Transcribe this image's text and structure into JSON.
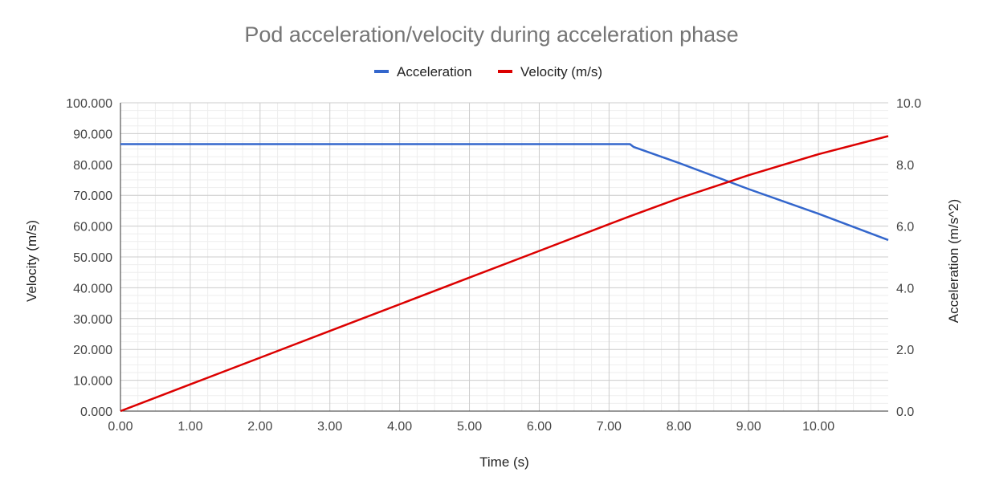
{
  "chart_data": {
    "type": "line",
    "title": "Pod acceleration/velocity during acceleration phase",
    "xlabel": "Time (s)",
    "ylabel_left": "Velocity (m/s)",
    "ylabel_right": "Acceleration (m/s^2)",
    "xlim": [
      0,
      11
    ],
    "ylim_left": [
      0,
      100
    ],
    "ylim_right": [
      0,
      10
    ],
    "x_ticks": [
      "0.00",
      "1.00",
      "2.00",
      "3.00",
      "4.00",
      "5.00",
      "6.00",
      "7.00",
      "8.00",
      "9.00",
      "10.00"
    ],
    "y_ticks_left": [
      "0.000",
      "10.000",
      "20.000",
      "30.000",
      "40.000",
      "50.000",
      "60.000",
      "70.000",
      "80.000",
      "90.000",
      "100.000"
    ],
    "y_ticks_right": [
      "0.0",
      "2.0",
      "4.0",
      "6.0",
      "8.0",
      "10.0"
    ],
    "grid": true,
    "legend_position": "top",
    "series": [
      {
        "name": "Acceleration",
        "axis": "right",
        "color": "#3366cc",
        "x": [
          0,
          7.3,
          7.35,
          8.0,
          9.0,
          10.0,
          11.0
        ],
        "y": [
          8.66,
          8.66,
          8.57,
          8.05,
          7.2,
          6.4,
          5.55
        ]
      },
      {
        "name": "Velocity (m/s)",
        "axis": "left",
        "color": "#dc0000",
        "x": [
          0,
          1,
          2,
          3,
          4,
          5,
          6,
          7,
          7.3,
          8,
          9,
          10,
          11
        ],
        "y": [
          0,
          8.66,
          17.32,
          25.98,
          34.64,
          43.3,
          51.96,
          60.62,
          63.2,
          69.0,
          76.5,
          83.3,
          89.2
        ]
      }
    ]
  }
}
